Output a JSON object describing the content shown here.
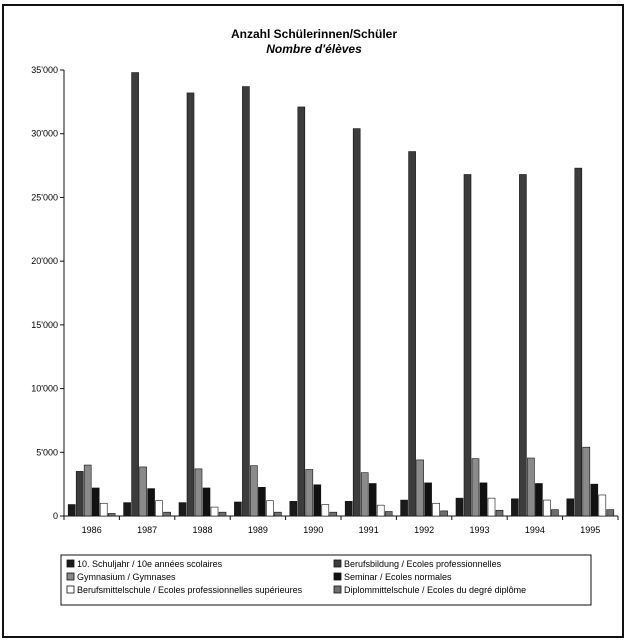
{
  "chart_data": {
    "type": "bar",
    "title": "Anzahl Schülerinnen/Schüler",
    "subtitle": "Nombre d'élèves",
    "xlabel": "",
    "ylabel": "",
    "ylim": [
      0,
      35000
    ],
    "yticks": [
      {
        "value": 0,
        "label": "0"
      },
      {
        "value": 5000,
        "label": "5'000"
      },
      {
        "value": 10000,
        "label": "10'000"
      },
      {
        "value": 15000,
        "label": "15'000"
      },
      {
        "value": 20000,
        "label": "20'000"
      },
      {
        "value": 25000,
        "label": "25'000"
      },
      {
        "value": 30000,
        "label": "30'000"
      },
      {
        "value": 35000,
        "label": "35'000"
      }
    ],
    "grid": false,
    "legend_position": "bottom",
    "categories": [
      "1986",
      "1987",
      "1988",
      "1989",
      "1990",
      "1991",
      "1992",
      "1993",
      "1994",
      "1995"
    ],
    "series": [
      {
        "name": "10. Schuljahr / 10e années scolaires",
        "color": "#1a1a1a",
        "values": [
          900,
          1050,
          1050,
          1100,
          1150,
          1150,
          1250,
          1400,
          1350,
          1350
        ]
      },
      {
        "name": "Berufsbildung / Ecoles professionnelles",
        "color": "#3c3c3c",
        "values": [
          3500,
          34800,
          33200,
          33700,
          32100,
          30400,
          28600,
          26800,
          26800,
          27300
        ]
      },
      {
        "name": "Gymnasium / Gymnases",
        "color": "#8a8a8a",
        "values": [
          4000,
          3850,
          3700,
          3950,
          3650,
          3400,
          4400,
          4500,
          4550,
          5400
        ]
      },
      {
        "name": "Seminar / Ecoles normales",
        "color": "#111111",
        "values": [
          2200,
          2150,
          2200,
          2250,
          2450,
          2550,
          2600,
          2600,
          2550,
          2500
        ]
      },
      {
        "name": "Berufsmittelschule / Ecoles professionnelles supérieures",
        "color": "#ffffff",
        "values": [
          1000,
          1200,
          700,
          1200,
          900,
          850,
          1000,
          1400,
          1250,
          1650
        ]
      },
      {
        "name": "Diplommittelschule / Ecoles du degré diplôme",
        "color": "#6e6e6e",
        "values": [
          200,
          300,
          300,
          300,
          300,
          350,
          400,
          450,
          500,
          500
        ]
      }
    ]
  }
}
